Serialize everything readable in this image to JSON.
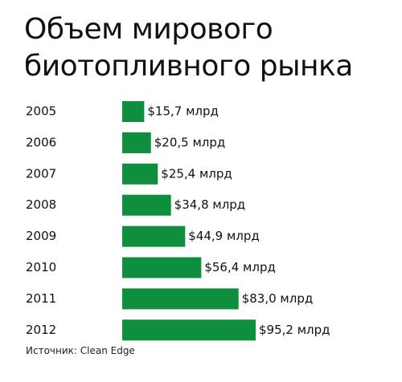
{
  "title_lines": [
    "Объем мирового",
    "биотопливного рынка"
  ],
  "source": "Источник: Clean Edge",
  "colors": {
    "bar": "#0f8f3d",
    "text": "#111111"
  },
  "chart_data": {
    "type": "bar",
    "orientation": "horizontal",
    "title": "Объем мирового биотопливного рынка",
    "categories": [
      "2005",
      "2006",
      "2007",
      "2008",
      "2009",
      "2010",
      "2011",
      "2012"
    ],
    "values": [
      15.7,
      20.5,
      25.4,
      34.8,
      44.9,
      56.4,
      83.0,
      95.2
    ],
    "value_labels": [
      "$15,7 млрд",
      "$20,5 млрд",
      "$25,4 млрд",
      "$34,8 млрд",
      "$44,9 млрд",
      "$56,4 млрд",
      "$83,0 млрд",
      "$95,2 млрд"
    ],
    "xlim": [
      0,
      95.2
    ],
    "grid": false,
    "legend": "none"
  }
}
